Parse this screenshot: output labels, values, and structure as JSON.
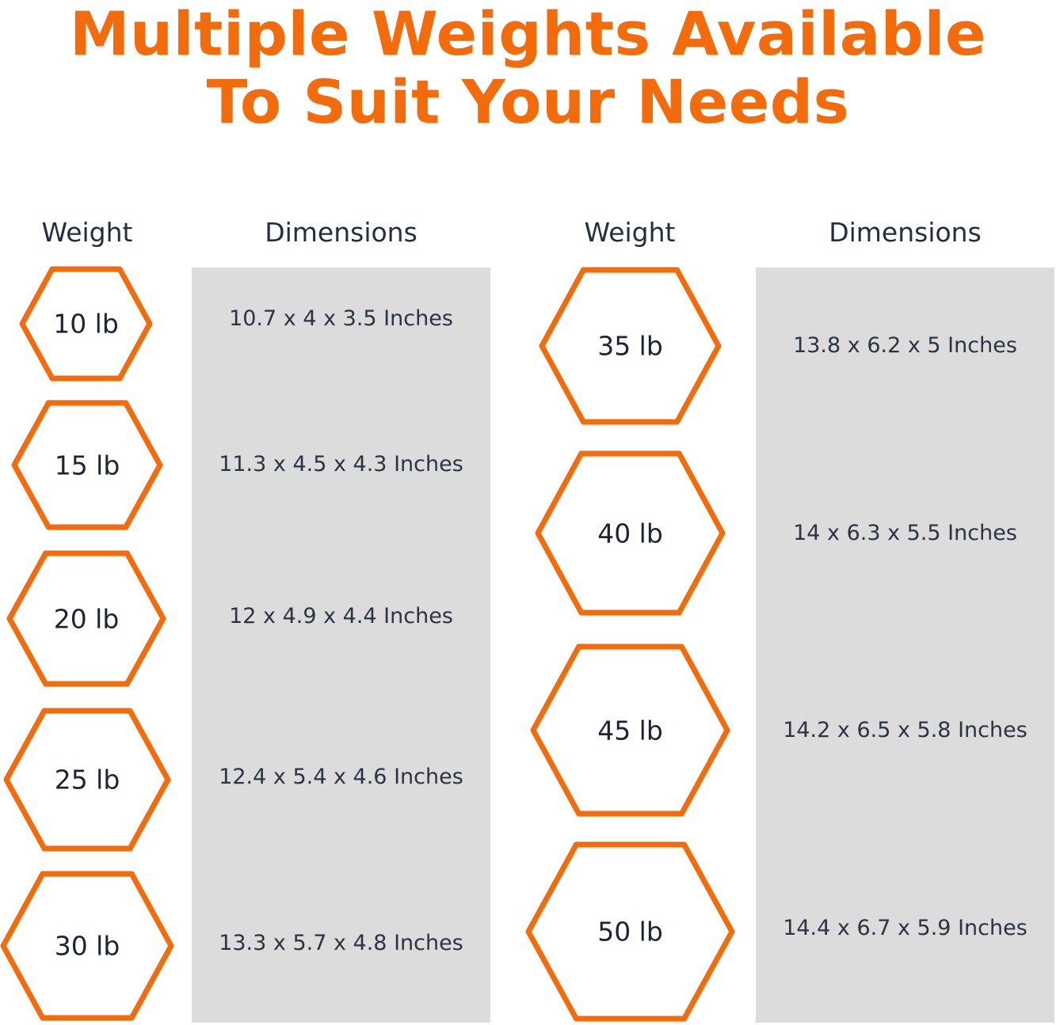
{
  "title": {
    "line1": "Multiple Weights Available",
    "line2": "To Suit Your Needs"
  },
  "colors": {
    "accent": "#f46b0c",
    "panel": "#dcdcdd",
    "text": "#232f3e"
  },
  "columns": [
    {
      "weight_header": "Weight",
      "dimensions_header": "Dimensions",
      "rows": [
        {
          "weight": "10 lb",
          "dimensions": "10.7 x 4 x 3.5 Inches"
        },
        {
          "weight": "15 lb",
          "dimensions": "11.3 x 4.5 x 4.3 Inches"
        },
        {
          "weight": "20 lb",
          "dimensions": "12 x 4.9 x 4.4 Inches"
        },
        {
          "weight": "25 lb",
          "dimensions": "12.4 x 5.4 x 4.6 Inches"
        },
        {
          "weight": "30 lb",
          "dimensions": "13.3 x 5.7 x 4.8 Inches"
        }
      ]
    },
    {
      "weight_header": "Weight",
      "dimensions_header": "Dimensions",
      "rows": [
        {
          "weight": "35 lb",
          "dimensions": "13.8 x 6.2 x 5 Inches"
        },
        {
          "weight": "40 lb",
          "dimensions": "14 x 6.3 x 5.5 Inches"
        },
        {
          "weight": "45 lb",
          "dimensions": "14.2 x 6.5 x 5.8 Inches"
        },
        {
          "weight": "50 lb",
          "dimensions": "14.4 x 6.7 x 5.9 Inches"
        }
      ]
    }
  ]
}
